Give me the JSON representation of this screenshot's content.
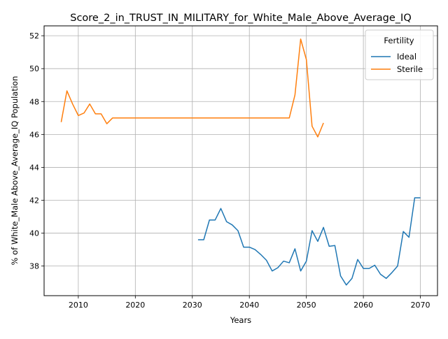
{
  "chart_data": {
    "type": "line",
    "title": "Score_2_in_TRUST_IN_MILITARY_for_White_Male_Above_Average_IQ",
    "xlabel": "Years",
    "ylabel": "% of White_Male Above_Average_IQ Population",
    "xlim": [
      2004,
      2073
    ],
    "ylim": [
      36.2,
      52.6
    ],
    "x_ticks": [
      2010,
      2020,
      2030,
      2040,
      2050,
      2060,
      2070
    ],
    "y_ticks": [
      38,
      40,
      42,
      44,
      46,
      48,
      50,
      52
    ],
    "grid": true,
    "legend": {
      "title": "Fertility",
      "position": "top-right"
    },
    "series": [
      {
        "name": "Ideal",
        "color": "#1f77b4",
        "x": [
          2031,
          2032,
          2033,
          2034,
          2035,
          2036,
          2037,
          2038,
          2039,
          2040,
          2041,
          2042,
          2043,
          2044,
          2045,
          2046,
          2047,
          2048,
          2049,
          2050,
          2051,
          2052,
          2053,
          2054,
          2055,
          2056,
          2057,
          2058,
          2059,
          2060,
          2061,
          2062,
          2063,
          2064,
          2065,
          2066,
          2067,
          2068,
          2069,
          2070
        ],
        "y": [
          39.6,
          39.6,
          40.8,
          40.8,
          41.5,
          40.7,
          40.5,
          40.15,
          39.15,
          39.15,
          39.0,
          38.7,
          38.35,
          37.7,
          37.9,
          38.3,
          38.2,
          39.05,
          37.7,
          38.3,
          40.15,
          39.5,
          40.35,
          39.2,
          39.25,
          37.4,
          36.85,
          37.25,
          38.4,
          37.85,
          37.85,
          38.05,
          37.5,
          37.25,
          37.6,
          38.0,
          40.1,
          39.75,
          42.15,
          42.15
        ]
      },
      {
        "name": "Sterile",
        "color": "#ff7f0e",
        "x": [
          2007,
          2008,
          2009,
          2010,
          2011,
          2012,
          2013,
          2014,
          2015,
          2016,
          2017,
          2018,
          2019,
          2020,
          2021,
          2022,
          2023,
          2024,
          2025,
          2026,
          2027,
          2028,
          2029,
          2030,
          2031,
          2032,
          2033,
          2034,
          2035,
          2036,
          2037,
          2038,
          2039,
          2040,
          2041,
          2042,
          2043,
          2044,
          2045,
          2046,
          2047,
          2048,
          2049,
          2050,
          2051,
          2052,
          2053
        ],
        "y": [
          46.75,
          48.65,
          47.85,
          47.15,
          47.3,
          47.85,
          47.25,
          47.25,
          46.65,
          47.0,
          47.0,
          47.0,
          47.0,
          47.0,
          47.0,
          47.0,
          47.0,
          47.0,
          47.0,
          47.0,
          47.0,
          47.0,
          47.0,
          47.0,
          47.0,
          47.0,
          47.0,
          47.0,
          47.0,
          47.0,
          47.0,
          47.0,
          47.0,
          47.0,
          47.0,
          47.0,
          47.0,
          47.0,
          47.0,
          47.0,
          47.0,
          48.4,
          51.8,
          50.55,
          46.5,
          45.85,
          46.7
        ]
      }
    ]
  }
}
